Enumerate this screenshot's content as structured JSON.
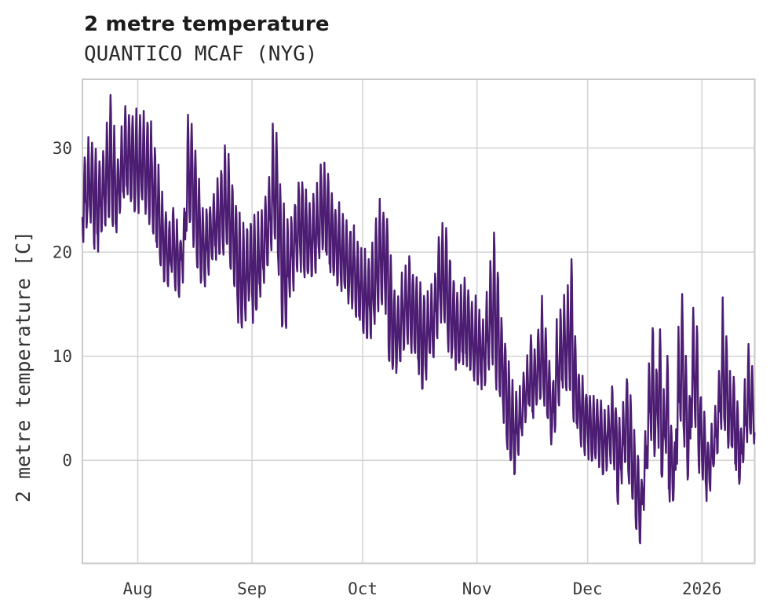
{
  "header": {
    "title": "2 metre temperature",
    "subtitle": "QUANTICO MCAF (NYG)"
  },
  "chart_data": {
    "type": "line",
    "title": "2 metre temperature",
    "subtitle": "QUANTICO MCAF (NYG)",
    "ylabel": "2 metre temperature [C]",
    "series_name": "2 metre temperature",
    "line_color": "#4c1d73",
    "grid_color": "#d4d4d4",
    "axis_border_color": "#c9c9c9",
    "background_color": "#ffffff",
    "grid": true,
    "legend": "none",
    "ylim": [
      -9.9,
      36.6
    ],
    "yticks": [
      0,
      10,
      20,
      30
    ],
    "xlim_days": [
      0,
      182.3
    ],
    "xticks": [
      {
        "label": "Aug",
        "day": 15
      },
      {
        "label": "Sep",
        "day": 46
      },
      {
        "label": "Oct",
        "day": 76
      },
      {
        "label": "Nov",
        "day": 107
      },
      {
        "label": "Dec",
        "day": 137
      },
      {
        "label": "2026",
        "day": 168
      }
    ],
    "points_per_day": 8,
    "daily_mean": [
      25.5,
      26.5,
      27,
      25.5,
      24.5,
      26,
      27.5,
      29,
      27,
      25.5,
      28,
      29,
      29.5,
      29,
      28.5,
      28.5,
      29,
      28.5,
      27.5,
      26,
      24,
      22,
      20.5,
      20,
      21,
      19.5,
      19,
      21,
      27,
      27.5,
      25,
      22.5,
      21,
      20.5,
      21.5,
      22,
      23,
      24,
      25,
      24.5,
      22.5,
      21,
      18.5,
      17.5,
      18.5,
      19.5,
      19,
      18.5,
      20,
      21.5,
      23,
      26,
      26.5,
      22.5,
      18.5,
      18,
      19.5,
      21,
      22.5,
      23,
      22,
      21,
      21.5,
      22,
      24,
      24.5,
      23,
      22,
      21,
      20.5,
      20,
      19.5,
      19,
      18.5,
      17.5,
      16.5,
      16,
      15.5,
      16.5,
      18,
      19.5,
      20,
      19,
      14,
      12.5,
      12,
      13.5,
      15,
      15.5,
      14.5,
      13.5,
      12.5,
      11.5,
      12,
      13,
      14,
      17,
      18,
      17.5,
      15.5,
      14,
      13,
      12.5,
      13.5,
      13,
      12,
      11.5,
      11,
      10.5,
      11.5,
      14,
      15.5,
      13,
      10,
      8,
      5.5,
      3.5,
      2.5,
      3.5,
      5.5,
      7,
      8,
      7.5,
      9,
      10.5,
      9,
      6.5,
      5,
      8,
      10,
      11,
      11.5,
      13,
      8,
      5.5,
      4.5,
      4,
      3.5,
      2.5,
      3,
      2.5,
      1.5,
      2.5,
      3.5,
      2.5,
      -0.5,
      1.5,
      4,
      2,
      -1,
      -3,
      -4.5,
      -1,
      4,
      8,
      5,
      7.5,
      2,
      5.5,
      0,
      -1,
      6,
      10,
      6,
      2,
      9,
      8,
      3,
      1.5,
      -0.5,
      0.5,
      2,
      4.5,
      9,
      7.5,
      5,
      4,
      2.5,
      0.5,
      3.5,
      6.5,
      5.5,
      6
    ],
    "daily_amp": [
      4,
      4,
      4.2,
      4.5,
      4,
      4,
      4.5,
      5.5,
      4.5,
      4,
      4.5,
      4.5,
      4,
      4.5,
      4.5,
      4.5,
      4.5,
      4.5,
      4.5,
      4,
      4,
      3.5,
      3.5,
      3,
      3.5,
      3,
      2.8,
      3.5,
      5.5,
      5,
      4.5,
      4,
      3.5,
      3.5,
      3.5,
      3.5,
      3.5,
      4,
      4.5,
      4.5,
      4,
      4,
      5,
      5,
      4.5,
      4,
      5,
      4.5,
      4,
      4,
      4.5,
      5.5,
      5,
      4.5,
      5.5,
      5,
      4,
      4,
      4.5,
      4.5,
      4,
      3.5,
      3.5,
      4,
      5,
      4.5,
      4,
      4,
      3.5,
      3.5,
      3.5,
      3.5,
      3.5,
      3.5,
      3.5,
      3.5,
      4,
      4,
      4.5,
      5.5,
      5,
      4.5,
      4.5,
      5,
      4,
      3.5,
      4,
      4,
      4,
      4,
      4,
      4,
      4.5,
      3.5,
      3.5,
      4,
      5,
      4.5,
      4.5,
      4.5,
      4,
      3.5,
      3.5,
      4,
      3.5,
      3.5,
      3.5,
      3.5,
      3.5,
      4,
      5,
      6.5,
      5.5,
      4,
      4,
      4,
      4,
      3.5,
      3,
      3.5,
      3.5,
      3.5,
      3.5,
      4,
      4.5,
      3.5,
      3,
      3,
      5,
      4.5,
      4.5,
      5,
      6.5,
      4,
      3,
      3,
      3,
      3,
      3,
      3,
      3,
      2.8,
      3,
      3.5,
      3.2,
      4.5,
      3.5,
      4,
      3.5,
      3.5,
      3.5,
      3.2,
      3.5,
      5,
      5.5,
      4.5,
      5.5,
      4,
      4.5,
      3.5,
      3,
      6,
      6,
      4.5,
      3.5,
      5.5,
      5,
      3.5,
      3.5,
      3,
      3,
      3,
      3.5,
      6,
      5,
      4,
      3.5,
      3.5,
      3,
      3.5,
      4.5,
      3.5,
      4
    ]
  }
}
